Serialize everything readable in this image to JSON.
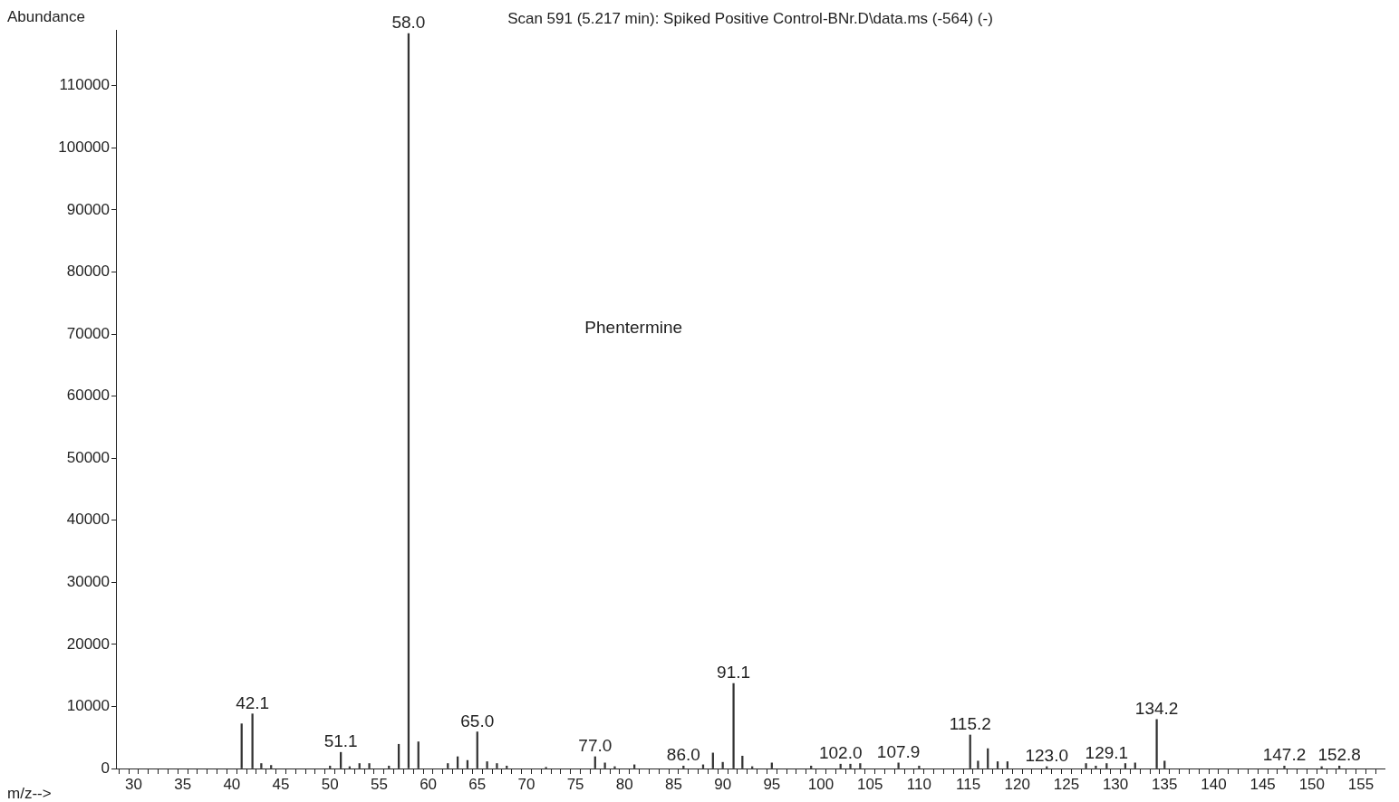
{
  "chart_data": {
    "type": "bar",
    "title": "Scan 591 (5.217 min): Spiked Positive Control-BNr.D\\data.ms (-564) (-)",
    "xlabel": "m/z-->",
    "ylabel": "Abundance",
    "color": "#333333",
    "annotations": [
      "Phentermine",
      {
        "text": "42.1",
        "x": 42.1,
        "y": 8800
      },
      {
        "text": "51.1",
        "x": 51.1,
        "y": 2600
      },
      {
        "text": "58.0",
        "x": 58.0,
        "y": 118400
      },
      {
        "text": "65.0",
        "x": 65.0,
        "y": 5900
      },
      {
        "text": "77.0",
        "x": 77.0,
        "y": 1900
      },
      {
        "text": "86.0",
        "x": 86.0,
        "y": 400
      },
      {
        "text": "91.1",
        "x": 91.1,
        "y": 13700
      },
      {
        "text": "102.0",
        "x": 102.0,
        "y": 700
      },
      {
        "text": "107.9",
        "x": 107.9,
        "y": 900
      },
      {
        "text": "115.2",
        "x": 115.2,
        "y": 5400
      },
      {
        "text": "123.0",
        "x": 123.0,
        "y": 300
      },
      {
        "text": "129.1",
        "x": 129.1,
        "y": 800
      },
      {
        "text": "134.2",
        "x": 134.2,
        "y": 7900
      },
      {
        "text": "147.2",
        "x": 147.2,
        "y": 400
      },
      {
        "text": "152.8",
        "x": 152.8,
        "y": 400
      }
    ],
    "x": [
      41,
      42.1,
      43,
      44,
      50,
      51.1,
      52,
      53,
      54,
      56,
      57,
      58.0,
      59,
      62,
      63,
      64,
      65.0,
      66,
      67,
      68,
      72,
      77.0,
      78,
      79,
      81,
      86.0,
      88,
      89,
      90,
      91.1,
      92,
      93,
      95,
      99,
      102.0,
      103,
      104,
      107.9,
      110,
      115.2,
      116,
      117,
      118,
      119,
      123.0,
      127,
      128,
      129.1,
      131,
      132,
      134.2,
      135,
      147.2,
      151,
      152.8
    ],
    "values": [
      7200,
      8800,
      800,
      500,
      400,
      2600,
      300,
      800,
      800,
      400,
      3900,
      118400,
      4300,
      800,
      1900,
      1300,
      5900,
      1100,
      800,
      400,
      200,
      1900,
      900,
      300,
      600,
      400,
      600,
      2500,
      1000,
      13700,
      2000,
      300,
      900,
      400,
      700,
      700,
      800,
      900,
      400,
      5400,
      1200,
      3200,
      1100,
      1100,
      300,
      800,
      400,
      800,
      800,
      900,
      7900,
      1200,
      400,
      300,
      400
    ],
    "xlim": [
      28.2,
      157.4
    ],
    "ylim": [
      0,
      119000
    ],
    "yticks": [
      0,
      10000,
      20000,
      30000,
      40000,
      50000,
      60000,
      70000,
      80000,
      90000,
      100000,
      110000
    ],
    "xticks": [
      {
        "value": 29,
        "label": null
      },
      30,
      {
        "value": 31,
        "label": null
      },
      {
        "value": 32,
        "label": null
      },
      {
        "value": 33,
        "label": null
      },
      {
        "value": 34,
        "label": null
      },
      35,
      {
        "value": 36,
        "label": null
      },
      {
        "value": 37,
        "label": null
      },
      {
        "value": 38,
        "label": null
      },
      {
        "value": 39,
        "label": null
      },
      40,
      {
        "value": 41,
        "label": null
      },
      {
        "value": 42,
        "label": null
      },
      {
        "value": 43,
        "label": null
      },
      {
        "value": 44,
        "label": null
      },
      45,
      {
        "value": 46,
        "label": null
      },
      {
        "value": 47,
        "label": null
      },
      {
        "value": 48,
        "label": null
      },
      {
        "value": 49,
        "label": null
      },
      50,
      {
        "value": 51,
        "label": null
      },
      {
        "value": 52,
        "label": null
      },
      {
        "value": 53,
        "label": null
      },
      {
        "value": 54,
        "label": null
      },
      55,
      {
        "value": 56,
        "label": null
      },
      {
        "value": 57,
        "label": null
      },
      {
        "value": 58,
        "label": null
      },
      {
        "value": 59,
        "label": null
      },
      60,
      {
        "value": 61,
        "label": null
      },
      {
        "value": 62,
        "label": null
      },
      {
        "value": 63,
        "label": null
      },
      {
        "value": 64,
        "label": null
      },
      65,
      {
        "value": 66,
        "label": null
      },
      {
        "value": 67,
        "label": null
      },
      {
        "value": 68,
        "label": null
      },
      {
        "value": 69,
        "label": null
      },
      70,
      {
        "value": 71,
        "label": null
      },
      {
        "value": 72,
        "label": null
      },
      {
        "value": 73,
        "label": null
      },
      {
        "value": 74,
        "label": null
      },
      75,
      {
        "value": 76,
        "label": null
      },
      {
        "value": 77,
        "label": null
      },
      {
        "value": 78,
        "label": null
      },
      {
        "value": 79,
        "label": null
      },
      80,
      {
        "value": 81,
        "label": null
      },
      {
        "value": 82,
        "label": null
      },
      {
        "value": 83,
        "label": null
      },
      {
        "value": 84,
        "label": null
      },
      85,
      {
        "value": 86,
        "label": null
      },
      {
        "value": 87,
        "label": null
      },
      {
        "value": 88,
        "label": null
      },
      {
        "value": 89,
        "label": null
      },
      90,
      {
        "value": 91,
        "label": null
      },
      {
        "value": 92,
        "label": null
      },
      {
        "value": 93,
        "label": null
      },
      {
        "value": 94,
        "label": null
      },
      95,
      {
        "value": 96,
        "label": null
      },
      {
        "value": 97,
        "label": null
      },
      {
        "value": 98,
        "label": null
      },
      {
        "value": 99,
        "label": null
      },
      100,
      {
        "value": 101,
        "label": null
      },
      {
        "value": 102,
        "label": null
      },
      {
        "value": 103,
        "label": null
      },
      {
        "value": 104,
        "label": null
      },
      105,
      {
        "value": 106,
        "label": null
      },
      {
        "value": 107,
        "label": null
      },
      {
        "value": 108,
        "label": null
      },
      {
        "value": 109,
        "label": null
      },
      110,
      {
        "value": 111,
        "label": null
      },
      {
        "value": 112,
        "label": null
      },
      {
        "value": 113,
        "label": null
      },
      {
        "value": 114,
        "label": null
      },
      115,
      {
        "value": 116,
        "label": null
      },
      {
        "value": 117,
        "label": null
      },
      {
        "value": 118,
        "label": null
      },
      {
        "value": 119,
        "label": null
      },
      120,
      {
        "value": 121,
        "label": null
      },
      {
        "value": 122,
        "label": null
      },
      {
        "value": 123,
        "label": null
      },
      {
        "value": 124,
        "label": null
      },
      125,
      {
        "value": 126,
        "label": null
      },
      {
        "value": 127,
        "label": null
      },
      {
        "value": 128,
        "label": null
      },
      {
        "value": 129,
        "label": null
      },
      130,
      {
        "value": 131,
        "label": null
      },
      {
        "value": 132,
        "label": null
      },
      {
        "value": 133,
        "label": null
      },
      {
        "value": 134,
        "label": null
      },
      135,
      {
        "value": 136,
        "label": null
      },
      {
        "value": 137,
        "label": null
      },
      {
        "value": 138,
        "label": null
      },
      {
        "value": 139,
        "label": null
      },
      140,
      {
        "value": 141,
        "label": null
      },
      {
        "value": 142,
        "label": null
      },
      {
        "value": 143,
        "label": null
      },
      {
        "value": 144,
        "label": null
      },
      145,
      {
        "value": 146,
        "label": null
      },
      {
        "value": 147,
        "label": null
      },
      {
        "value": 148,
        "label": null
      },
      {
        "value": 149,
        "label": null
      },
      150,
      {
        "value": 151,
        "label": null
      },
      {
        "value": 152,
        "label": null
      },
      {
        "value": 153,
        "label": null
      },
      {
        "value": 154,
        "label": null
      },
      155,
      {
        "value": 156,
        "label": null
      }
    ]
  }
}
